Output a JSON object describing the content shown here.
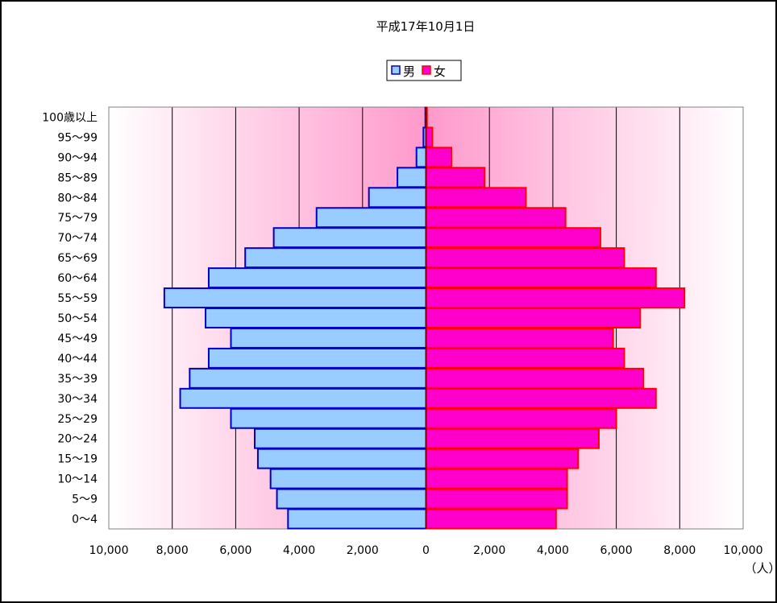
{
  "chart_data": {
    "type": "bar",
    "title": "平成17年10月1日",
    "unit_label": "（人）",
    "categories": [
      "0～4",
      "5～9",
      "10～14",
      "15～19",
      "20～24",
      "25～29",
      "30～34",
      "35～39",
      "40～44",
      "45～49",
      "50～54",
      "55～59",
      "60～64",
      "65～69",
      "70～74",
      "75～79",
      "80～84",
      "85～89",
      "90～94",
      "95～99",
      "100歳以上"
    ],
    "series": [
      {
        "name": "男",
        "values": [
          4350,
          4700,
          4900,
          5300,
          5400,
          6150,
          7750,
          7450,
          6850,
          6150,
          6950,
          8250,
          6850,
          5700,
          4800,
          3450,
          1800,
          900,
          300,
          80,
          20
        ]
      },
      {
        "name": "女",
        "values": [
          4100,
          4450,
          4450,
          4800,
          5450,
          6000,
          7250,
          6850,
          6250,
          5900,
          6750,
          8150,
          7250,
          6250,
          5500,
          4400,
          3150,
          1850,
          800,
          200,
          30
        ]
      }
    ],
    "x_ticks": [
      "10,000",
      "8,000",
      "6,000",
      "4,000",
      "2,000",
      "0",
      "2,000",
      "4,000",
      "6,000",
      "8,000",
      "10,000"
    ],
    "xlim": [
      -10000,
      10000
    ],
    "legend_position": "top-center",
    "grid": true,
    "colors": {
      "male_fill": "#99CCFF",
      "male_stroke": "#0000CC",
      "female_fill": "#FF00CC",
      "female_stroke": "#FF0000",
      "center_pink": "#FF99CC",
      "edge_pink": "#FFFFFF"
    }
  }
}
